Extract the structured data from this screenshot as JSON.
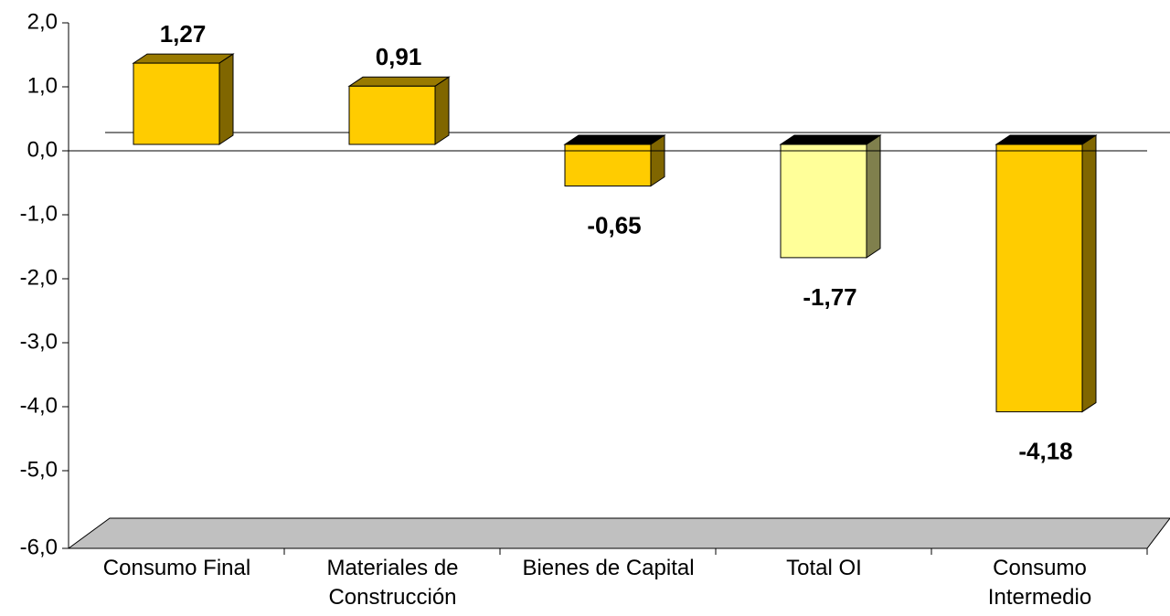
{
  "chart_data": {
    "type": "bar3d",
    "categories": [
      "Consumo Final",
      "Materiales de Construcción",
      "Bienes de Capital",
      "Total OI",
      "Consumo Intermedio"
    ],
    "values": [
      1.27,
      0.91,
      -0.65,
      -1.77,
      -4.18
    ],
    "value_labels": [
      "1,27",
      "0,91",
      "-0,65",
      "-1,77",
      "-4,18"
    ],
    "colors": [
      "#ffcc00",
      "#ffcc00",
      "#ffcc00",
      "#ffff99",
      "#ffcc00"
    ],
    "ylim": [
      -6,
      2
    ],
    "yticks": [
      {
        "value": -6,
        "label": "-6,0"
      },
      {
        "value": -5,
        "label": "-5,0"
      },
      {
        "value": -4,
        "label": "-4,0"
      },
      {
        "value": -3,
        "label": "-3,0"
      },
      {
        "value": -2,
        "label": "-2,0"
      },
      {
        "value": -1,
        "label": "-1,0"
      },
      {
        "value": 0,
        "label": "0,0"
      },
      {
        "value": 1,
        "label": "1,0"
      },
      {
        "value": 2,
        "label": "2,0"
      }
    ]
  }
}
